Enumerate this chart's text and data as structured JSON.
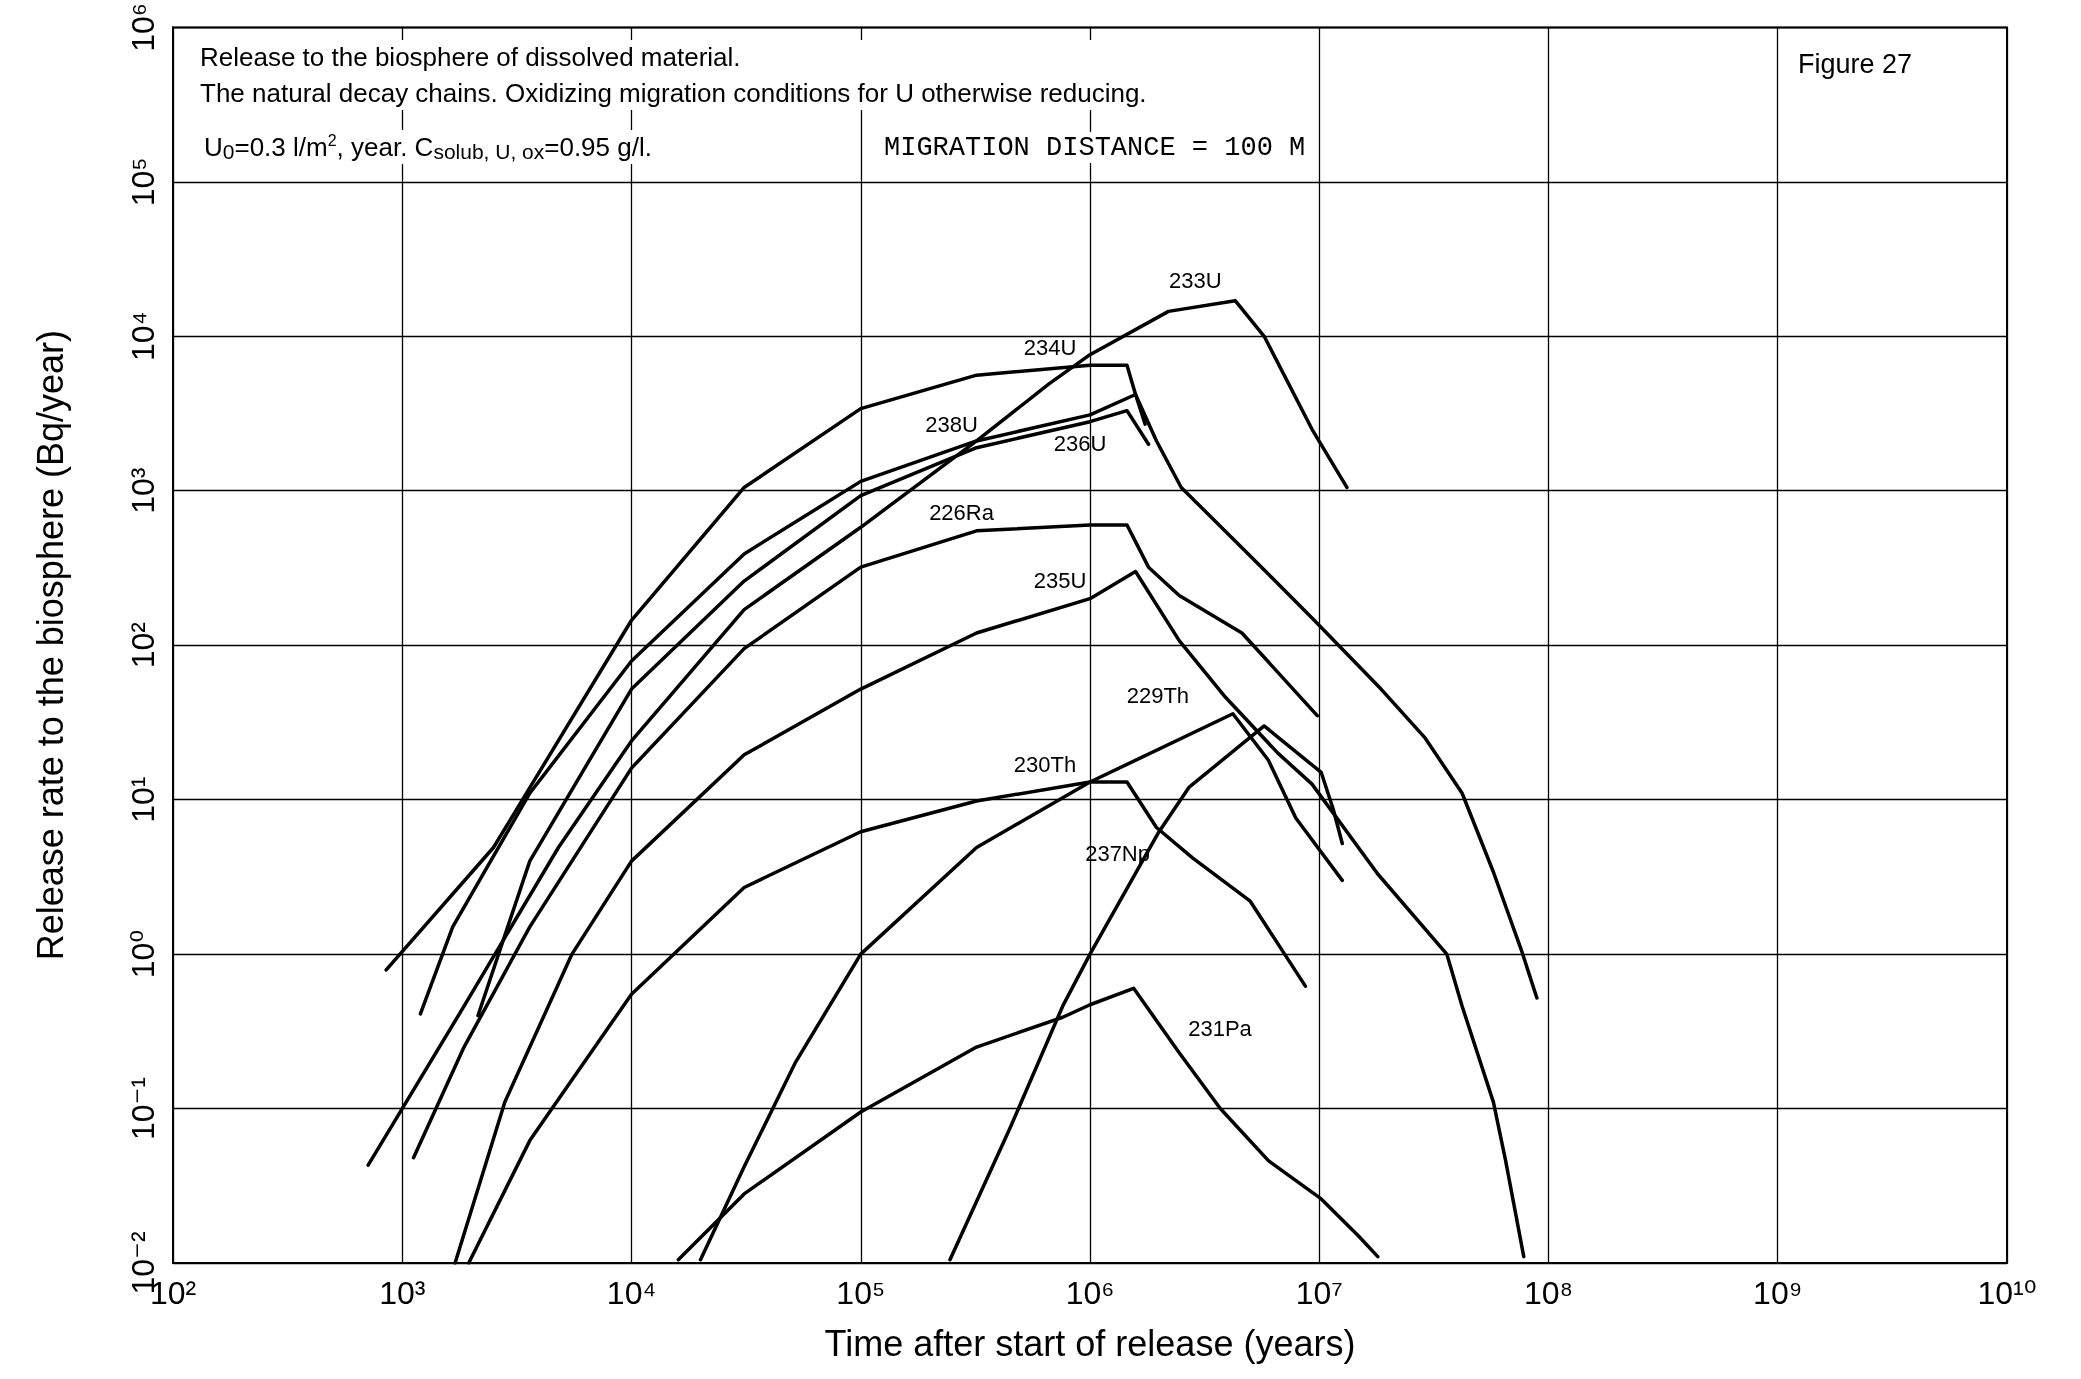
{
  "chart_data": {
    "type": "line",
    "title": "Release to the biosphere of dissolved material.",
    "subtitle": "The natural decay chains. Oxidizing migration conditions for U otherwise reducing.",
    "annotations": [
      "U$_{0}$=0.3 l/m$^{2}$, year. C$_{solub, U, ox}$=0.95 g/l.",
      "MIGRATION DISTANCE = 100 M",
      "Figure 27"
    ],
    "xlabel": "Time after start of release (years)",
    "ylabel": "Release rate to the biosphere (Bq/year)",
    "log": "xy",
    "grid": true,
    "legend": false,
    "marker": "none",
    "line_style": "solid",
    "xlim": [
      100,
      10000000000
    ],
    "xticks": [
      {
        "value": 100,
        "label": "10²"
      },
      {
        "value": 1000,
        "label": "10³"
      },
      {
        "value": 10000,
        "label": "10⁴"
      },
      {
        "value": 100000,
        "label": "10⁵"
      },
      {
        "value": 1000000,
        "label": "10⁶"
      },
      {
        "value": 10000000,
        "label": "10⁷"
      },
      {
        "value": 100000000,
        "label": "10⁸"
      },
      {
        "value": 1000000000,
        "label": "10⁹"
      },
      {
        "value": 10000000000,
        "label": "10¹⁰"
      }
    ],
    "ylim": [
      0.01,
      1000000
    ],
    "yticks": [
      {
        "value": 0.01,
        "label": "10⁻²"
      },
      {
        "value": 0.1,
        "label": "10⁻¹"
      },
      {
        "value": 1,
        "label": "10⁰"
      },
      {
        "value": 10,
        "label": "10¹"
      },
      {
        "value": 100,
        "label": "10²"
      },
      {
        "value": 1000,
        "label": "10³"
      },
      {
        "value": 10000,
        "label": "10⁴"
      },
      {
        "value": 100000,
        "label": "10⁵"
      },
      {
        "value": 1000000,
        "label": "10⁶"
      }
    ],
    "series": [
      {
        "name": "234U",
        "color": "#000000",
        "x": [
          851,
          2500,
          10000,
          31000,
          100000,
          320000,
          1000000,
          1450000,
          1580000,
          1950000,
          2500000,
          4900000,
          9300000,
          18600000,
          29000000,
          42000000,
          57500000,
          76000000,
          89000000
        ],
        "values": [
          0.79,
          4.9,
          145,
          1050,
          3400,
          5600,
          6500,
          6500,
          4200,
          2100,
          1050,
          390,
          150,
          52,
          25,
          11,
          3.4,
          1.07,
          0.52
        ]
      },
      {
        "name": "238U",
        "color": "#000000",
        "x": [
          1200,
          1660,
          3600,
          10000,
          31000,
          100000,
          320000,
          1000000,
          1580000,
          1740000
        ],
        "values": [
          0.41,
          1.5,
          11,
          79,
          390,
          1150,
          2100,
          3100,
          4200,
          2700
        ]
      },
      {
        "name": "236U",
        "color": "#000000",
        "x": [
          2140,
          3600,
          10000,
          31000,
          100000,
          320000,
          1000000,
          1450000,
          1800000
        ],
        "values": [
          0.4,
          4,
          52,
          260,
          930,
          1900,
          2800,
          3300,
          2000
        ]
      },
      {
        "name": "233U",
        "color": "#000000",
        "x": [
          710,
          1860,
          4800,
          10000,
          31000,
          100000,
          320000,
          660000,
          1000000,
          2200000,
          4300000,
          5750000,
          9300000,
          13200000
        ],
        "values": [
          0.043,
          0.46,
          4.9,
          24,
          170,
          580,
          2100,
          4900,
          7600,
          14500,
          17000,
          10000,
          2500,
          1050
        ]
      },
      {
        "name": "226Ra",
        "color": "#000000",
        "x": [
          1120,
          1860,
          3600,
          10000,
          31000,
          100000,
          320000,
          1000000,
          1450000,
          1800000,
          2450000,
          4600000,
          9800000
        ],
        "values": [
          0.048,
          0.25,
          1.5,
          16,
          95,
          320,
          550,
          600,
          600,
          320,
          210,
          120,
          35
        ]
      },
      {
        "name": "235U",
        "color": "#000000",
        "x": [
          1700,
          2800,
          5500,
          10000,
          31000,
          100000,
          320000,
          1000000,
          1580000,
          2450000,
          3900000,
          6600000,
          9300000,
          18000000,
          36000000,
          42000000,
          57500000,
          65000000,
          78000000
        ],
        "values": [
          0.01,
          0.11,
          1,
          4,
          19.5,
          52,
          120,
          200,
          300,
          107,
          46,
          20,
          12.6,
          3.3,
          1,
          0.46,
          0.11,
          0.046,
          0.011
        ]
      },
      {
        "name": "230Th",
        "color": "#000000",
        "x": [
          1950,
          3600,
          10000,
          31000,
          100000,
          320000,
          1000000,
          1450000,
          1950000,
          2800000,
          5000000,
          8700000
        ],
        "values": [
          0.01,
          0.062,
          0.55,
          2.7,
          6.2,
          9.8,
          13,
          13,
          6.6,
          4.2,
          2.2,
          0.62
        ]
      },
      {
        "name": "229Th",
        "color": "#000000",
        "x": [
          20000,
          31000,
          52000,
          100000,
          320000,
          1000000,
          4200000,
          6000000,
          7900000,
          12600000
        ],
        "values": [
          0.0105,
          0.042,
          0.2,
          1,
          4.9,
          13,
          36,
          18,
          7.6,
          3
        ]
      },
      {
        "name": "237Np",
        "color": "#000000",
        "x": [
          245000,
          450000,
          760000,
          1000000,
          2000000,
          2700000,
          5750000,
          10200000,
          11500000,
          12600000
        ],
        "values": [
          0.0105,
          0.076,
          0.46,
          1,
          6.2,
          12,
          30,
          15,
          8.7,
          5.2
        ]
      },
      {
        "name": "231Pa",
        "color": "#000000",
        "x": [
          16000,
          31000,
          100000,
          320000,
          760000,
          1000000,
          1550000,
          2450000,
          3700000,
          6000000,
          10200000,
          14800000,
          18000000
        ],
        "values": [
          0.0105,
          0.028,
          0.095,
          0.25,
          0.39,
          0.47,
          0.6,
          0.23,
          0.1,
          0.046,
          0.026,
          0.015,
          0.011
        ]
      }
    ]
  }
}
